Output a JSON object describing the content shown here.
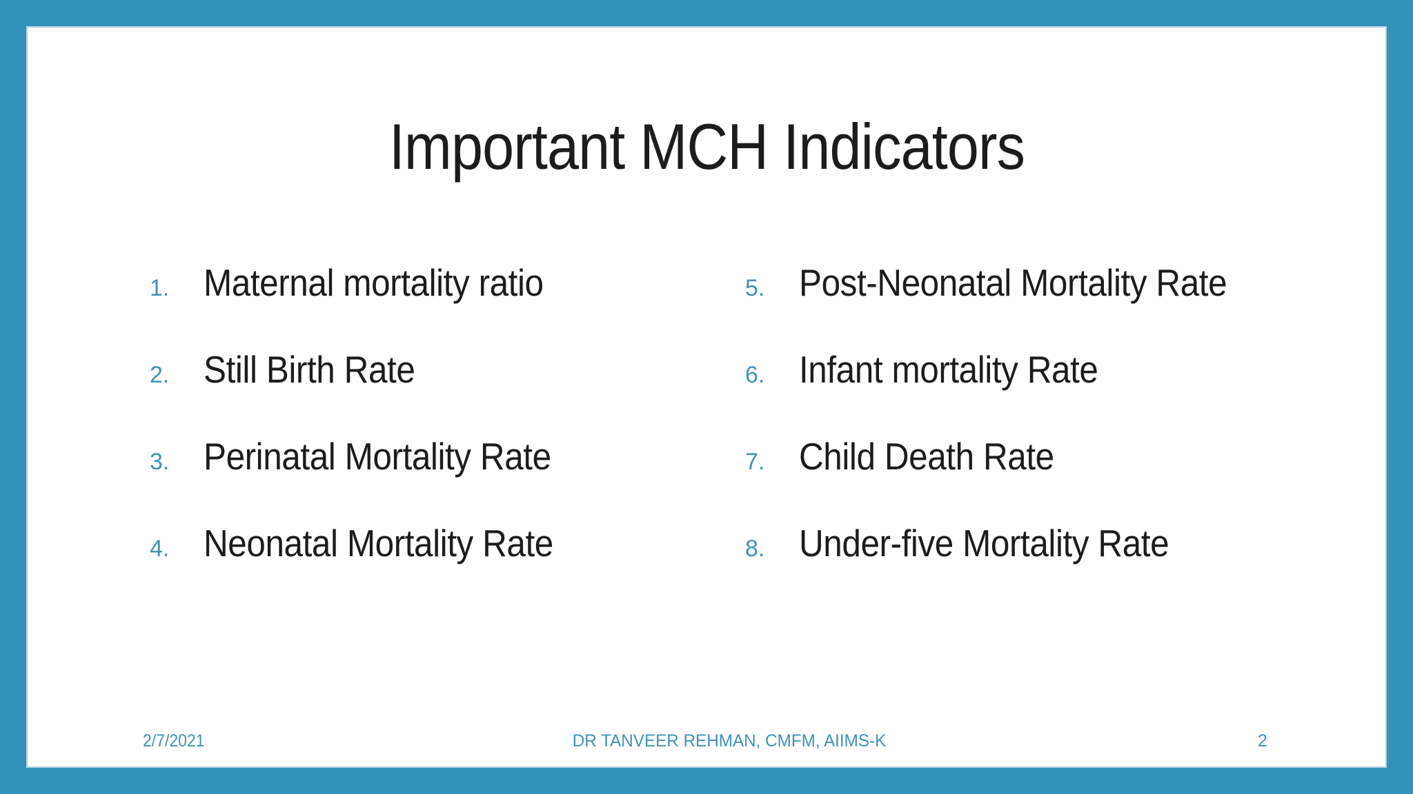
{
  "slide": {
    "title": "Important MCH Indicators",
    "left_items": [
      {
        "num": "1.",
        "label": "Maternal mortality ratio"
      },
      {
        "num": "2.",
        "label": "Still Birth Rate"
      },
      {
        "num": "3.",
        "label": "Perinatal Mortality Rate"
      },
      {
        "num": "4.",
        "label": "Neonatal Mortality Rate"
      }
    ],
    "right_items": [
      {
        "num": "5.",
        "label": "Post-Neonatal Mortality Rate"
      },
      {
        "num": "6.",
        "label": "Infant mortality Rate"
      },
      {
        "num": "7.",
        "label": "Child Death Rate"
      },
      {
        "num": "8.",
        "label": "Under-five Mortality Rate"
      }
    ],
    "footer": {
      "date": "2/7/2021",
      "credit": "DR TANVEER REHMAN, CMFM, AIIMS-K",
      "page_number": "2"
    },
    "colors": {
      "frame": "#3292ba",
      "accent": "#4292b9",
      "text": "#1c1c1c",
      "background": "#ffffff"
    }
  }
}
